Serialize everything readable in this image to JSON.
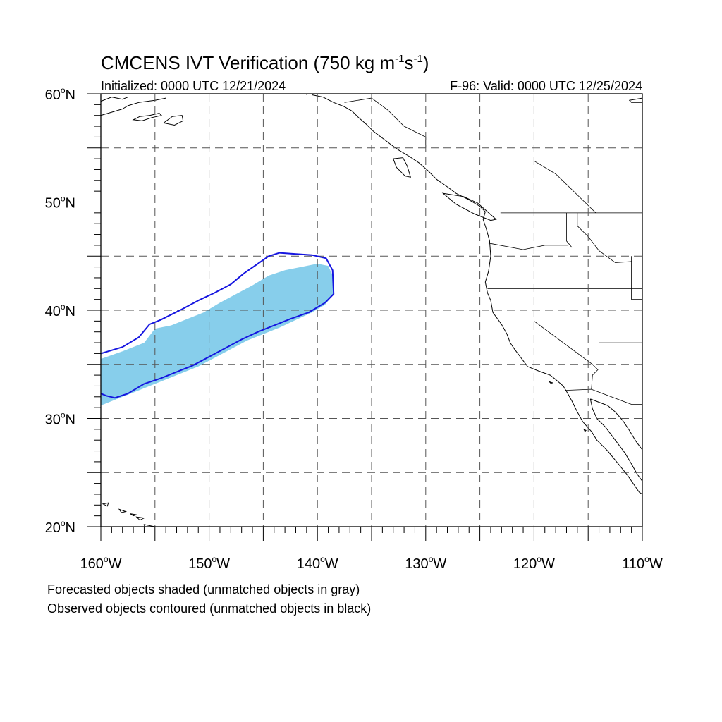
{
  "header": {
    "title_main": "CMCENS IVT Verification (750 kg m",
    "title_exp1": "-1",
    "title_s": "s",
    "title_exp2": "-1",
    "title_close": ")",
    "initialized": "Initialized: 0000 UTC 12/21/2024",
    "valid": "F-96: Valid: 0000 UTC 12/25/2024"
  },
  "map": {
    "projection": "cylindrical equidistant",
    "lon_range": [
      -160,
      -110
    ],
    "lat_range": [
      20,
      60
    ],
    "gridlines": "dashed, every 5 degrees",
    "lat_labels": [
      {
        "lat": 60,
        "label": "60",
        "suffix": "N"
      },
      {
        "lat": 50,
        "label": "50",
        "suffix": "N"
      },
      {
        "lat": 40,
        "label": "40",
        "suffix": "N"
      },
      {
        "lat": 30,
        "label": "30",
        "suffix": "N"
      },
      {
        "lat": 20,
        "label": "20",
        "suffix": "N"
      }
    ],
    "lon_labels": [
      {
        "lon": -160,
        "label": "160",
        "suffix": "W"
      },
      {
        "lon": -150,
        "label": "150",
        "suffix": "W"
      },
      {
        "lon": -140,
        "label": "140",
        "suffix": "W"
      },
      {
        "lon": -130,
        "label": "130",
        "suffix": "W"
      },
      {
        "lon": -120,
        "label": "120",
        "suffix": "W"
      },
      {
        "lon": -110,
        "label": "110",
        "suffix": "W"
      }
    ],
    "colors": {
      "forecast_fill": "#87ceeb",
      "observed_contour": "#1515e0",
      "coastline": "#000000",
      "gridline": "#555555"
    }
  },
  "objects": {
    "forecast": {
      "description": "Forecasted IVT object (matched)",
      "polygon": [
        [
          -160,
          35.5
        ],
        [
          -158,
          36.2
        ],
        [
          -156,
          37.0
        ],
        [
          -155,
          38.3
        ],
        [
          -153.5,
          38.6
        ],
        [
          -152,
          39.2
        ],
        [
          -150.5,
          39.8
        ],
        [
          -149,
          40.7
        ],
        [
          -147.5,
          41.5
        ],
        [
          -146,
          42.3
        ],
        [
          -144.5,
          43.2
        ],
        [
          -143,
          43.7
        ],
        [
          -141.5,
          44.0
        ],
        [
          -140,
          44.3
        ],
        [
          -139,
          44.1
        ],
        [
          -138.5,
          43.0
        ],
        [
          -138.5,
          41.5
        ],
        [
          -139.3,
          40.5
        ],
        [
          -140.5,
          39.8
        ],
        [
          -142,
          39.1
        ],
        [
          -143.5,
          38.4
        ],
        [
          -145,
          37.8
        ],
        [
          -146.5,
          37.2
        ],
        [
          -148,
          36.4
        ],
        [
          -149.5,
          35.6
        ],
        [
          -151,
          34.8
        ],
        [
          -152.5,
          34.2
        ],
        [
          -154,
          33.6
        ],
        [
          -155.5,
          33.0
        ],
        [
          -157,
          32.4
        ],
        [
          -158.5,
          31.8
        ],
        [
          -160,
          31.2
        ]
      ]
    },
    "observed": {
      "description": "Observed IVT object contour (matched)",
      "polyline": [
        [
          -160,
          36.0
        ],
        [
          -158,
          36.6
        ],
        [
          -156.5,
          37.5
        ],
        [
          -155.5,
          38.7
        ],
        [
          -154.5,
          39.1
        ],
        [
          -152.5,
          40.1
        ],
        [
          -151,
          40.9
        ],
        [
          -149.5,
          41.6
        ],
        [
          -148,
          42.4
        ],
        [
          -146.8,
          43.4
        ],
        [
          -145.5,
          44.3
        ],
        [
          -144.5,
          45.0
        ],
        [
          -143.5,
          45.3
        ],
        [
          -142,
          45.2
        ],
        [
          -140.5,
          45.1
        ],
        [
          -139.2,
          44.8
        ],
        [
          -138.6,
          43.7
        ],
        [
          -138.5,
          41.5
        ],
        [
          -139.3,
          40.7
        ],
        [
          -140.8,
          39.8
        ],
        [
          -142.5,
          39.2
        ],
        [
          -144,
          38.6
        ],
        [
          -145.5,
          38.0
        ],
        [
          -147,
          37.3
        ],
        [
          -148.5,
          36.5
        ],
        [
          -150,
          35.7
        ],
        [
          -151.5,
          34.9
        ],
        [
          -153,
          34.3
        ],
        [
          -154.5,
          33.7
        ],
        [
          -156,
          33.2
        ],
        [
          -157.5,
          32.3
        ],
        [
          -158.7,
          31.9
        ],
        [
          -159.5,
          32.1
        ],
        [
          -160,
          32.3
        ]
      ]
    }
  },
  "coastlines": {
    "west_coast": [
      [
        -140.5,
        59.9
      ],
      [
        -139.5,
        59.7
      ],
      [
        -138.5,
        59.2
      ],
      [
        -137.5,
        58.8
      ],
      [
        -136.8,
        58.4
      ],
      [
        -136.2,
        57.8
      ],
      [
        -135.5,
        57.2
      ],
      [
        -134.8,
        56.5
      ],
      [
        -134.0,
        55.9
      ],
      [
        -133.2,
        55.3
      ],
      [
        -132.5,
        54.8
      ],
      [
        -131.5,
        54.2
      ],
      [
        -130.6,
        53.6
      ],
      [
        -129.8,
        52.9
      ],
      [
        -129.0,
        52.1
      ],
      [
        -128.0,
        51.4
      ],
      [
        -127.2,
        50.8
      ],
      [
        -126.0,
        50.2
      ],
      [
        -125.0,
        49.6
      ],
      [
        -124.5,
        49.1
      ],
      [
        -124.7,
        48.4
      ],
      [
        -124.4,
        47.5
      ],
      [
        -124.1,
        46.4
      ],
      [
        -124.0,
        45.0
      ],
      [
        -124.2,
        43.6
      ],
      [
        -124.5,
        42.6
      ],
      [
        -124.3,
        41.6
      ],
      [
        -124.0,
        40.9
      ],
      [
        -123.8,
        39.8
      ],
      [
        -123.0,
        38.7
      ],
      [
        -122.5,
        37.8
      ],
      [
        -122.2,
        37.0
      ],
      [
        -121.8,
        36.4
      ],
      [
        -121.2,
        35.6
      ],
      [
        -120.6,
        34.8
      ],
      [
        -119.6,
        34.4
      ],
      [
        -118.5,
        34.0
      ],
      [
        -118.0,
        33.6
      ],
      [
        -117.3,
        33.0
      ],
      [
        -117.0,
        32.5
      ],
      [
        -116.5,
        31.6
      ],
      [
        -116.0,
        30.6
      ],
      [
        -115.5,
        29.7
      ],
      [
        -114.7,
        28.8
      ],
      [
        -114.2,
        28.0
      ],
      [
        -113.2,
        27.0
      ],
      [
        -112.3,
        25.9
      ],
      [
        -111.4,
        24.8
      ],
      [
        -110.3,
        23.2
      ],
      [
        -110.0,
        23.0
      ]
    ],
    "gulf_baja_inner": [
      [
        -114.8,
        31.8
      ],
      [
        -114.6,
        30.9
      ],
      [
        -114.2,
        30.0
      ],
      [
        -113.4,
        29.2
      ],
      [
        -112.8,
        28.4
      ],
      [
        -112.2,
        27.6
      ],
      [
        -111.6,
        26.8
      ],
      [
        -111.0,
        25.8
      ],
      [
        -110.5,
        24.9
      ],
      [
        -110.0,
        24.2
      ]
    ],
    "mainland_mexico": [
      [
        -114.8,
        31.8
      ],
      [
        -114.0,
        31.5
      ],
      [
        -113.2,
        31.2
      ],
      [
        -112.5,
        30.6
      ],
      [
        -111.8,
        29.8
      ],
      [
        -111.2,
        28.9
      ],
      [
        -110.6,
        27.9
      ],
      [
        -110.0,
        27.1
      ]
    ],
    "alaska_north": [
      [
        -160,
        58.0
      ],
      [
        -159,
        58.3
      ],
      [
        -158,
        58.6
      ],
      [
        -157.5,
        58.9
      ],
      [
        -156.5,
        59.2
      ],
      [
        -155,
        59.4
      ],
      [
        -154,
        59.6
      ]
    ],
    "alaska_upper_left": [
      [
        -160,
        59.3
      ],
      [
        -159,
        59.7
      ],
      [
        -158,
        59.5
      ],
      [
        -157.5,
        59.7
      ]
    ],
    "top_right_corner": [
      [
        -110.0,
        59.6
      ],
      [
        -111.2,
        59.4
      ],
      [
        -111.0,
        59.2
      ],
      [
        -110.0,
        59.2
      ]
    ],
    "islands": [
      [
        [
          -157.0,
          57.6
        ],
        [
          -156.4,
          57.9
        ],
        [
          -155.5,
          58.0
        ],
        [
          -154.6,
          58.2
        ],
        [
          -154.4,
          58.0
        ],
        [
          -155.3,
          57.8
        ],
        [
          -156.2,
          57.5
        ],
        [
          -157.0,
          57.6
        ]
      ],
      [
        [
          -154.2,
          57.3
        ],
        [
          -153.4,
          57.9
        ],
        [
          -152.5,
          58.0
        ],
        [
          -152.4,
          57.5
        ],
        [
          -153.2,
          57.1
        ],
        [
          -154.2,
          57.3
        ]
      ],
      [
        [
          -133.0,
          54.0
        ],
        [
          -132.1,
          54.1
        ],
        [
          -131.7,
          53.3
        ],
        [
          -131.4,
          52.3
        ],
        [
          -131.9,
          52.4
        ],
        [
          -132.7,
          53.2
        ],
        [
          -133.0,
          54.0
        ]
      ],
      [
        [
          -128.4,
          50.8
        ],
        [
          -126.5,
          50.5
        ],
        [
          -125.2,
          49.9
        ],
        [
          -123.5,
          48.4
        ],
        [
          -124.0,
          48.3
        ],
        [
          -125.5,
          48.9
        ],
        [
          -127.2,
          49.8
        ],
        [
          -128.4,
          50.8
        ]
      ],
      [
        [
          -118.6,
          33.4
        ],
        [
          -118.3,
          33.3
        ],
        [
          -118.4,
          33.2
        ],
        [
          -118.6,
          33.4
        ]
      ],
      [
        [
          -115.4,
          29.0
        ],
        [
          -115.2,
          28.9
        ],
        [
          -115.3,
          28.8
        ],
        [
          -115.4,
          29.0
        ]
      ],
      [
        [
          -159.8,
          22.1
        ],
        [
          -159.3,
          22.2
        ],
        [
          -159.4,
          21.9
        ],
        [
          -159.8,
          22.1
        ]
      ],
      [
        [
          -158.3,
          21.6
        ],
        [
          -157.7,
          21.4
        ],
        [
          -158.1,
          21.3
        ],
        [
          -158.3,
          21.6
        ]
      ],
      [
        [
          -157.3,
          21.2
        ],
        [
          -156.7,
          21.1
        ],
        [
          -157.0,
          21.0
        ],
        [
          -157.3,
          21.2
        ]
      ],
      [
        [
          -156.7,
          20.9
        ],
        [
          -156.0,
          20.8
        ],
        [
          -156.4,
          20.6
        ],
        [
          -156.7,
          20.9
        ]
      ],
      [
        [
          -156.0,
          20.2
        ],
        [
          -155.0,
          20.0
        ],
        [
          -154.9,
          19.6
        ],
        [
          -155.8,
          19.3
        ],
        [
          -156.0,
          20.2
        ]
      ]
    ]
  },
  "boundaries": [
    [
      [
        -123.1,
        49.0
      ],
      [
        -110.0,
        49.0
      ]
    ],
    [
      [
        -124.2,
        46.2
      ],
      [
        -121.0,
        45.6
      ],
      [
        -119.0,
        46.0
      ],
      [
        -116.9,
        46.0
      ]
    ],
    [
      [
        -124.3,
        42.0
      ],
      [
        -110.0,
        42.0
      ]
    ],
    [
      [
        -120.0,
        42.0
      ],
      [
        -120.0,
        39.0
      ],
      [
        -114.6,
        35.0
      ]
    ],
    [
      [
        -117.0,
        49.0
      ],
      [
        -117.0,
        46.4
      ],
      [
        -116.5,
        45.8
      ]
    ],
    [
      [
        -116.0,
        49.0
      ],
      [
        -116.0,
        47.8
      ],
      [
        -115.0,
        46.8
      ],
      [
        -114.0,
        45.5
      ],
      [
        -112.5,
        44.4
      ],
      [
        -111.0,
        44.5
      ]
    ],
    [
      [
        -114.0,
        42.0
      ],
      [
        -114.0,
        37.0
      ]
    ],
    [
      [
        -114.0,
        37.0
      ],
      [
        -110.0,
        37.0
      ]
    ],
    [
      [
        -111.0,
        45.0
      ],
      [
        -111.0,
        41.0
      ],
      [
        -110.0,
        41.0
      ]
    ],
    [
      [
        -117.1,
        32.6
      ],
      [
        -114.7,
        32.7
      ],
      [
        -111.0,
        31.3
      ],
      [
        -110.0,
        31.3
      ]
    ],
    [
      [
        -114.7,
        32.7
      ],
      [
        -114.6,
        34.0
      ],
      [
        -114.1,
        34.5
      ],
      [
        -114.6,
        35.0
      ]
    ],
    [
      [
        -141.0,
        59.9
      ],
      [
        -141.0,
        60.0
      ]
    ],
    [
      [
        -137.5,
        59.2
      ],
      [
        -135.0,
        59.6
      ],
      [
        -133.5,
        58.5
      ],
      [
        -132.0,
        57.0
      ],
      [
        -130.0,
        56.0
      ],
      [
        -130.0,
        55.0
      ]
    ],
    [
      [
        -120.0,
        60.0
      ],
      [
        -120.0,
        53.8
      ],
      [
        -118.0,
        52.6
      ],
      [
        -114.3,
        49.0
      ]
    ]
  ],
  "footer": {
    "line1": "Forecasted objects shaded (unmatched objects in gray)",
    "line2": "Observed objects contoured (unmatched objects in black)"
  }
}
